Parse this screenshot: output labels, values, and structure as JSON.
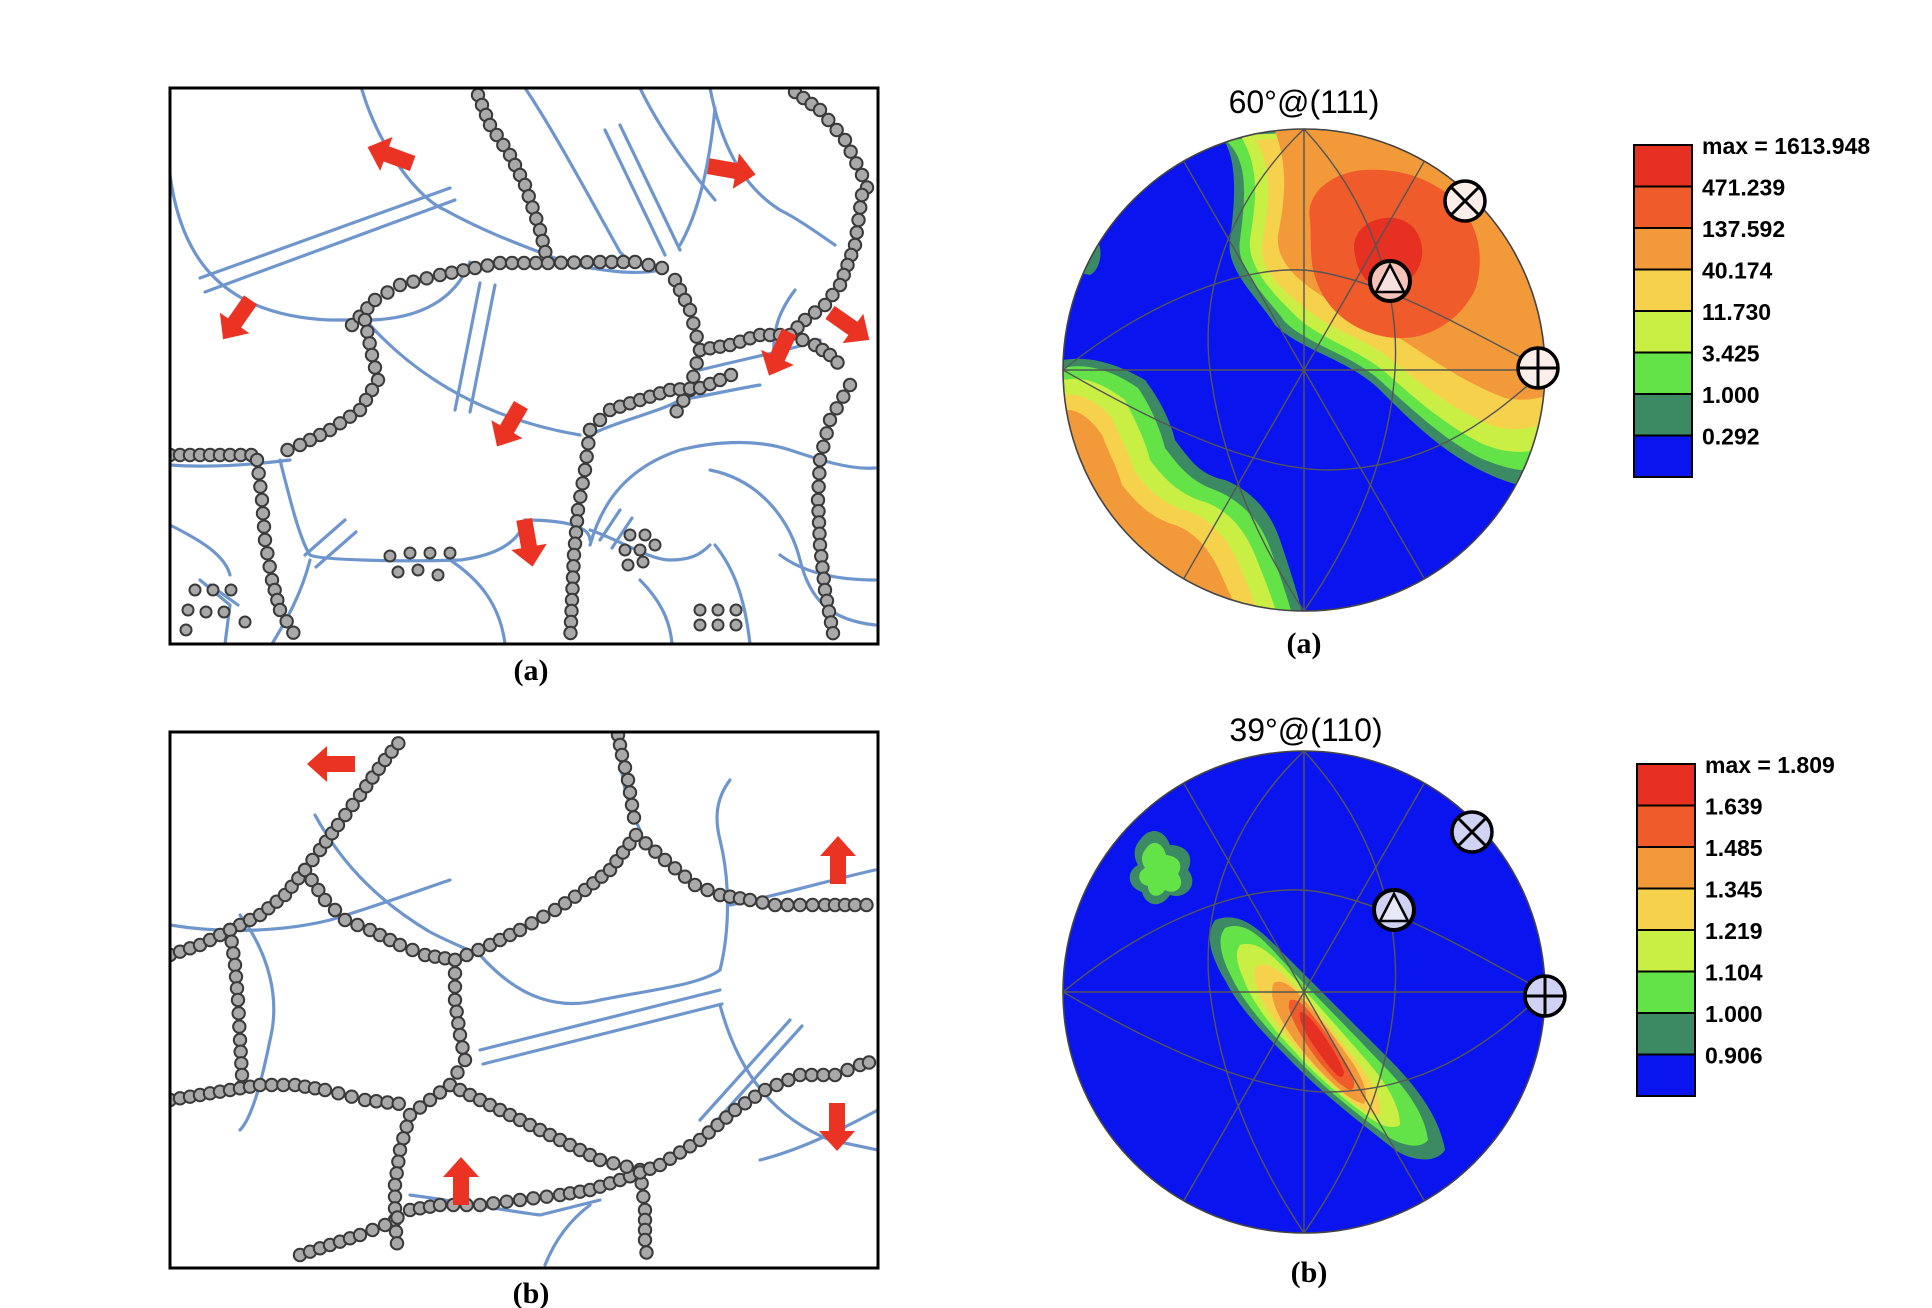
{
  "colors": {
    "boundary_line": "#6f96cc",
    "particle_fill": "#a9a9a9",
    "particle_edge": "#3a3a3a",
    "arrow": "#ea3323",
    "pole_fill": "#0a14ee",
    "pole_grid": "#555555"
  },
  "panels": {
    "microstructure_a": {
      "caption": "(a)"
    },
    "microstructure_b": {
      "caption": "(b)"
    },
    "pole_a": {
      "title": "60°@(111)",
      "caption": "(a)",
      "legend": [
        {
          "label": "max = 1613.948",
          "color": "#e53022"
        },
        {
          "label": "471.239",
          "color": "#ef5b2a"
        },
        {
          "label": "137.592",
          "color": "#f29a3a"
        },
        {
          "label": "40.174",
          "color": "#f6d24c"
        },
        {
          "label": "11.730",
          "color": "#c9ef45"
        },
        {
          "label": "3.425",
          "color": "#64e348"
        },
        {
          "label": "1.000",
          "color": "#3c8a64"
        },
        {
          "label": "0.292",
          "color": "#0a14ee"
        }
      ],
      "markers": [
        "cross-circle-icon",
        "plus-circle-icon",
        "triangle-circle-icon"
      ]
    },
    "pole_b": {
      "title": "39°@(110)",
      "caption": "(b)",
      "legend": [
        {
          "label": "max = 1.809",
          "color": "#e53022"
        },
        {
          "label": "1.639",
          "color": "#ef5b2a"
        },
        {
          "label": "1.485",
          "color": "#f29a3a"
        },
        {
          "label": "1.345",
          "color": "#f6d24c"
        },
        {
          "label": "1.219",
          "color": "#c9ef45"
        },
        {
          "label": "1.104",
          "color": "#64e348"
        },
        {
          "label": "1.000",
          "color": "#3c8a64"
        },
        {
          "label": "0.906",
          "color": "#0a14ee"
        }
      ],
      "markers": [
        "cross-circle-icon",
        "plus-circle-icon",
        "triangle-circle-icon"
      ]
    }
  }
}
